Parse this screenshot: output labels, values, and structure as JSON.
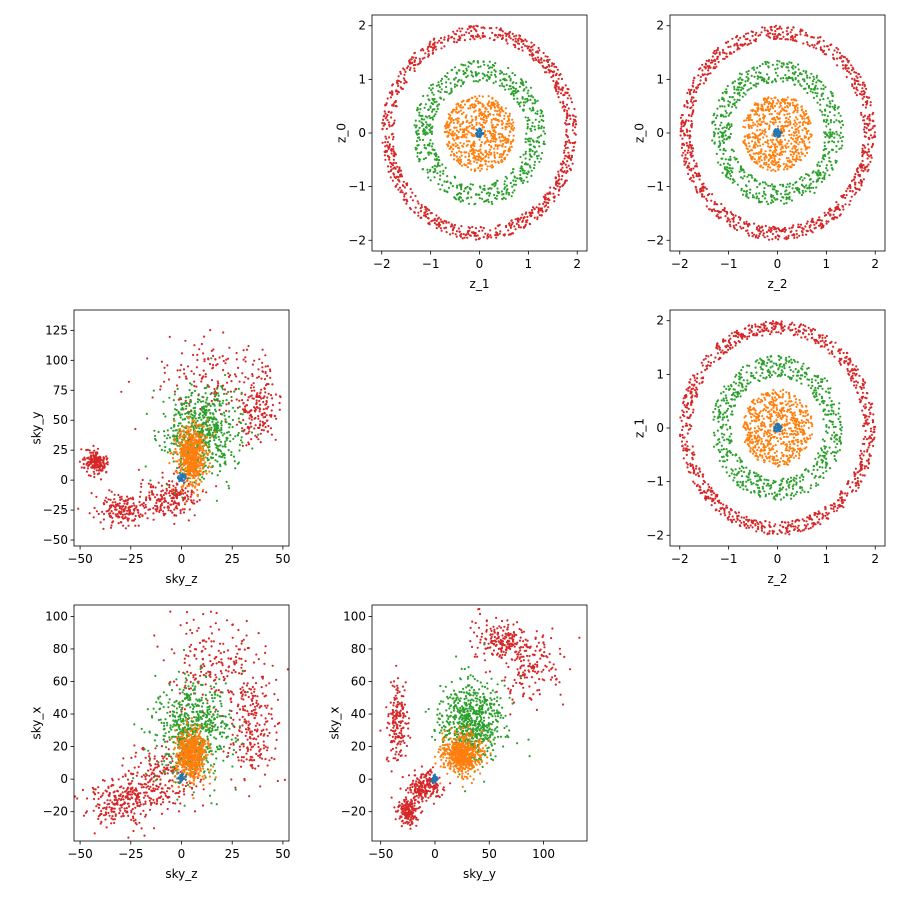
{
  "figure": {
    "colors": {
      "blue": "#1f77b4",
      "orange": "#ff7f0e",
      "green": "#2ca02c",
      "red": "#d62728",
      "frame": "#000000",
      "background": "#ffffff"
    }
  },
  "chart_data": [
    {
      "id": "z1_vs_z0",
      "type": "scatter",
      "xlabel": "z_1",
      "ylabel": "z_0",
      "xlim": [
        -2.2,
        2.2
      ],
      "ylim": [
        -2.2,
        2.2
      ],
      "xticks": [
        -2,
        -1,
        0,
        1,
        2
      ],
      "yticks": [
        -2,
        -1,
        0,
        1,
        2
      ],
      "xtick_labels": [
        "−2",
        "−1",
        "0",
        "1",
        "2"
      ],
      "ytick_labels": [
        "−2",
        "−1",
        "0",
        "1",
        "2"
      ],
      "grid": false,
      "series": [
        {
          "color": "#d62728",
          "shape": "ring",
          "center": [
            0,
            0
          ],
          "inner_radius": 1.75,
          "outer_radius": 2.0
        },
        {
          "color": "#2ca02c",
          "shape": "ring",
          "center": [
            0,
            0
          ],
          "inner_radius": 0.95,
          "outer_radius": 1.35
        },
        {
          "color": "#ff7f0e",
          "shape": "disk",
          "center": [
            0,
            0
          ],
          "radius": 0.72
        },
        {
          "color": "#1f77b4",
          "shape": "disk",
          "center": [
            0,
            0
          ],
          "radius": 0.08
        }
      ]
    },
    {
      "id": "z2_vs_z0",
      "type": "scatter",
      "xlabel": "z_2",
      "ylabel": "z_0",
      "xlim": [
        -2.2,
        2.2
      ],
      "ylim": [
        -2.2,
        2.2
      ],
      "xticks": [
        -2,
        -1,
        0,
        1,
        2
      ],
      "yticks": [
        -2,
        -1,
        0,
        1,
        2
      ],
      "xtick_labels": [
        "−2",
        "−1",
        "0",
        "1",
        "2"
      ],
      "ytick_labels": [
        "−2",
        "−1",
        "0",
        "1",
        "2"
      ],
      "grid": false,
      "series": [
        {
          "color": "#d62728",
          "shape": "ring",
          "center": [
            0,
            0
          ],
          "inner_radius": 1.75,
          "outer_radius": 2.0
        },
        {
          "color": "#2ca02c",
          "shape": "ring",
          "center": [
            0,
            0
          ],
          "inner_radius": 0.95,
          "outer_radius": 1.35
        },
        {
          "color": "#ff7f0e",
          "shape": "disk",
          "center": [
            0,
            0
          ],
          "radius": 0.72
        },
        {
          "color": "#1f77b4",
          "shape": "disk",
          "center": [
            0,
            0
          ],
          "radius": 0.08
        }
      ]
    },
    {
      "id": "skyz_vs_skyy",
      "type": "scatter",
      "xlabel": "sky_z",
      "ylabel": "sky_y",
      "xlim": [
        -53,
        53
      ],
      "ylim": [
        -55,
        142
      ],
      "xticks": [
        -50,
        -25,
        0,
        25,
        50
      ],
      "yticks": [
        -50,
        -25,
        0,
        25,
        50,
        75,
        100,
        125
      ],
      "xtick_labels": [
        "−50",
        "−25",
        "0",
        "25",
        "50"
      ],
      "ytick_labels": [
        "−50",
        "−25",
        "0",
        "25",
        "50",
        "75",
        "100",
        "125"
      ],
      "grid": false,
      "series": [
        {
          "color": "#d62728",
          "shape": "cloud",
          "regions": [
            {
              "center": [
                -5,
                -15
              ],
              "spread": [
                12,
                15
              ]
            },
            {
              "center": [
                -30,
                -25
              ],
              "spread": [
                10,
                10
              ]
            },
            {
              "center": [
                -42,
                15
              ],
              "spread": [
                5,
                8
              ]
            },
            {
              "center": [
                15,
                85
              ],
              "spread": [
                25,
                30
              ]
            },
            {
              "center": [
                38,
                60
              ],
              "spread": [
                8,
                25
              ]
            }
          ]
        },
        {
          "color": "#2ca02c",
          "shape": "cloud",
          "regions": [
            {
              "center": [
                10,
                40
              ],
              "spread": [
                15,
                30
              ]
            }
          ]
        },
        {
          "color": "#ff7f0e",
          "shape": "cloud",
          "regions": [
            {
              "center": [
                5,
                20
              ],
              "spread": [
                6,
                20
              ]
            }
          ]
        },
        {
          "color": "#1f77b4",
          "shape": "cloud",
          "regions": [
            {
              "center": [
                0,
                2
              ],
              "spread": [
                1.5,
                3
              ]
            }
          ]
        }
      ]
    },
    {
      "id": "z2_vs_z1",
      "type": "scatter",
      "xlabel": "z_2",
      "ylabel": "z_1",
      "xlim": [
        -2.2,
        2.2
      ],
      "ylim": [
        -2.2,
        2.2
      ],
      "xticks": [
        -2,
        -1,
        0,
        1,
        2
      ],
      "yticks": [
        -2,
        -1,
        0,
        1,
        2
      ],
      "xtick_labels": [
        "−2",
        "−1",
        "0",
        "1",
        "2"
      ],
      "ytick_labels": [
        "−2",
        "−1",
        "0",
        "1",
        "2"
      ],
      "grid": false,
      "series": [
        {
          "color": "#d62728",
          "shape": "ring",
          "center": [
            0,
            0
          ],
          "inner_radius": 1.75,
          "outer_radius": 2.0
        },
        {
          "color": "#2ca02c",
          "shape": "ring",
          "center": [
            0,
            0
          ],
          "inner_radius": 0.95,
          "outer_radius": 1.35
        },
        {
          "color": "#ff7f0e",
          "shape": "disk",
          "center": [
            0,
            0
          ],
          "radius": 0.72
        },
        {
          "color": "#1f77b4",
          "shape": "disk",
          "center": [
            0,
            0
          ],
          "radius": 0.08
        }
      ]
    },
    {
      "id": "skyz_vs_skyx",
      "type": "scatter",
      "xlabel": "sky_z",
      "ylabel": "sky_x",
      "xlim": [
        -53,
        53
      ],
      "ylim": [
        -38,
        107
      ],
      "xticks": [
        -50,
        -25,
        0,
        25,
        50
      ],
      "yticks": [
        -20,
        0,
        20,
        40,
        60,
        80,
        100
      ],
      "xtick_labels": [
        "−50",
        "−25",
        "0",
        "25",
        "50"
      ],
      "ytick_labels": [
        "−20",
        "0",
        "20",
        "40",
        "60",
        "80",
        "100"
      ],
      "grid": false,
      "series": [
        {
          "color": "#d62728",
          "shape": "cloud",
          "regions": [
            {
              "center": [
                -10,
                0
              ],
              "spread": [
                15,
                15
              ]
            },
            {
              "center": [
                -30,
                -15
              ],
              "spread": [
                12,
                12
              ]
            },
            {
              "center": [
                15,
                70
              ],
              "spread": [
                20,
                25
              ]
            },
            {
              "center": [
                35,
                30
              ],
              "spread": [
                10,
                25
              ]
            }
          ]
        },
        {
          "color": "#2ca02c",
          "shape": "cloud",
          "regions": [
            {
              "center": [
                5,
                30
              ],
              "spread": [
                15,
                25
              ]
            }
          ]
        },
        {
          "color": "#ff7f0e",
          "shape": "cloud",
          "regions": [
            {
              "center": [
                5,
                15
              ],
              "spread": [
                6,
                12
              ]
            }
          ]
        },
        {
          "color": "#1f77b4",
          "shape": "cloud",
          "regions": [
            {
              "center": [
                0,
                1
              ],
              "spread": [
                1.5,
                2
              ]
            }
          ]
        }
      ]
    },
    {
      "id": "skyy_vs_skyx",
      "type": "scatter",
      "xlabel": "sky_y",
      "ylabel": "sky_x",
      "xlim": [
        -58,
        140
      ],
      "ylim": [
        -38,
        107
      ],
      "xticks": [
        -50,
        0,
        50,
        100
      ],
      "yticks": [
        -20,
        0,
        20,
        40,
        60,
        80,
        100
      ],
      "xtick_labels": [
        "−50",
        "0",
        "50",
        "100"
      ],
      "ytick_labels": [
        "−20",
        "0",
        "20",
        "40",
        "60",
        "80",
        "100"
      ],
      "grid": false,
      "series": [
        {
          "color": "#d62728",
          "shape": "cloud",
          "regions": [
            {
              "center": [
                -10,
                -5
              ],
              "spread": [
                12,
                8
              ]
            },
            {
              "center": [
                -35,
                35
              ],
              "spread": [
                8,
                20
              ]
            },
            {
              "center": [
                -25,
                -20
              ],
              "spread": [
                8,
                8
              ]
            },
            {
              "center": [
                90,
                70
              ],
              "spread": [
                25,
                20
              ]
            },
            {
              "center": [
                60,
                85
              ],
              "spread": [
                20,
                10
              ]
            }
          ]
        },
        {
          "color": "#2ca02c",
          "shape": "cloud",
          "regions": [
            {
              "center": [
                35,
                35
              ],
              "spread": [
                25,
                20
              ]
            }
          ]
        },
        {
          "color": "#ff7f0e",
          "shape": "cloud",
          "regions": [
            {
              "center": [
                25,
                15
              ],
              "spread": [
                15,
                10
              ]
            }
          ]
        },
        {
          "color": "#1f77b4",
          "shape": "cloud",
          "regions": [
            {
              "center": [
                0,
                0
              ],
              "spread": [
                2,
                2
              ]
            }
          ]
        }
      ]
    }
  ]
}
